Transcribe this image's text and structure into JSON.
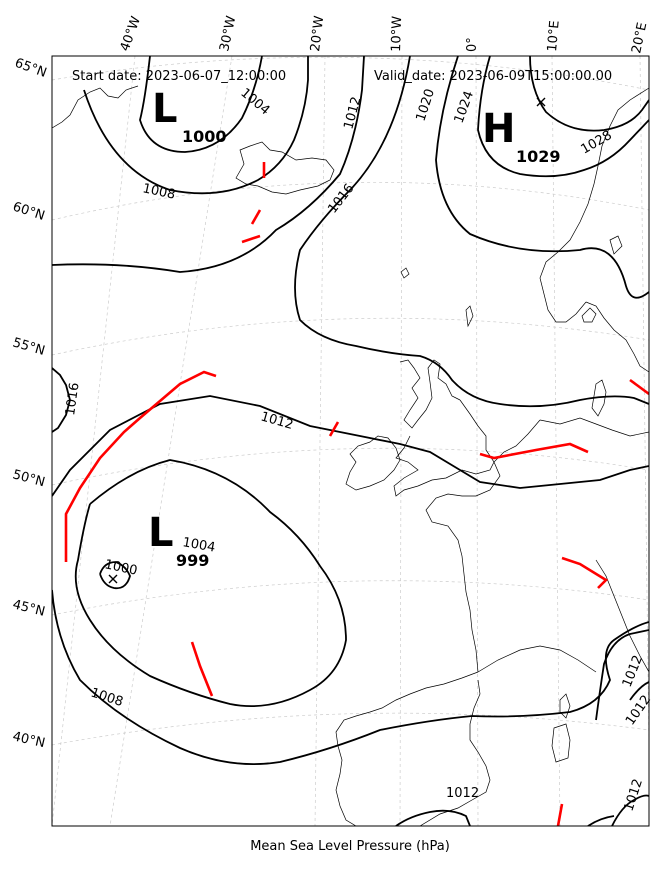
{
  "map": {
    "start_label": "Start date: 2023-06-07_12:00:00",
    "valid_label": "Valid_date: 2023-06-09T15:00:00.00",
    "caption": "Mean Sea Level Pressure (hPa)",
    "longitude_labels": [
      "40°W",
      "30°W",
      "20°W",
      "10°W",
      "0°",
      "10°E",
      "20°E"
    ],
    "latitude_labels": [
      "65°N",
      "60°N",
      "55°N",
      "50°N",
      "45°N",
      "40°N"
    ],
    "pressure_centers": [
      {
        "type": "L",
        "value": "1000"
      },
      {
        "type": "H",
        "value": "1029"
      },
      {
        "type": "L",
        "value": "999"
      }
    ],
    "isobar_labels": [
      "1004",
      "1008",
      "1012",
      "1016",
      "1020",
      "1024",
      "1028",
      "1000",
      "1004",
      "1008",
      "1012",
      "1016",
      "1012",
      "1012",
      "1012",
      "1012"
    ],
    "colors": {
      "isobar": "#000000",
      "front": "#ff0000",
      "grid": "#cccccc",
      "coast": "#000000"
    }
  }
}
